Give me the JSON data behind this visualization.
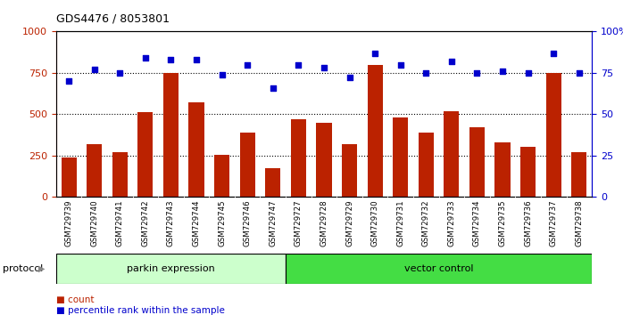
{
  "title": "GDS4476 / 8053801",
  "samples": [
    "GSM729739",
    "GSM729740",
    "GSM729741",
    "GSM729742",
    "GSM729743",
    "GSM729744",
    "GSM729745",
    "GSM729746",
    "GSM729747",
    "GSM729727",
    "GSM729728",
    "GSM729729",
    "GSM729730",
    "GSM729731",
    "GSM729732",
    "GSM729733",
    "GSM729734",
    "GSM729735",
    "GSM729736",
    "GSM729737",
    "GSM729738"
  ],
  "counts": [
    240,
    320,
    270,
    510,
    750,
    570,
    255,
    390,
    175,
    470,
    450,
    320,
    800,
    480,
    390,
    520,
    420,
    330,
    300,
    750,
    270
  ],
  "percentile": [
    70,
    77,
    75,
    84,
    83,
    83,
    74,
    80,
    66,
    80,
    78,
    72,
    87,
    80,
    75,
    82,
    75,
    76,
    75,
    87,
    75
  ],
  "parkin_count": 9,
  "vector_count": 12,
  "bar_color": "#bb2200",
  "dot_color": "#0000cc",
  "parkin_bg": "#ccffcc",
  "vector_bg": "#44dd44",
  "label_bg": "#cccccc",
  "ylim_left": [
    0,
    1000
  ],
  "ylim_right": [
    0,
    100
  ],
  "yticks_left": [
    0,
    250,
    500,
    750,
    1000
  ],
  "yticks_right": [
    0,
    25,
    50,
    75,
    100
  ],
  "grid_values": [
    250,
    500,
    750
  ],
  "legend_count_label": "count",
  "legend_pct_label": "percentile rank within the sample",
  "protocol_label": "protocol",
  "parkin_label": "parkin expression",
  "vector_label": "vector control"
}
